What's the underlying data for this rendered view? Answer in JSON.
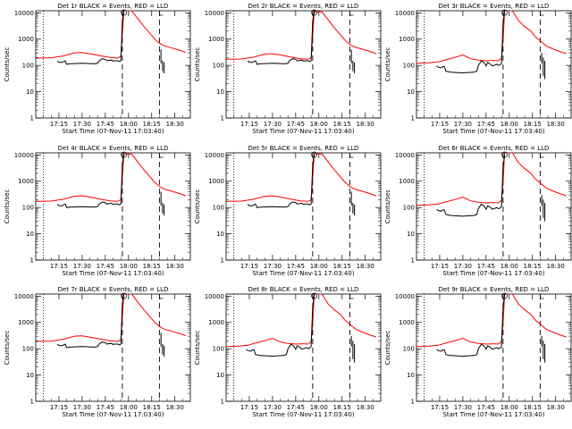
{
  "chart_data": {
    "type": "line",
    "panels": [
      {
        "title": "Det 1r BLACK = Events, RED = LLD",
        "xlabel": "Start Time (07-Nov-11 17:03:40)",
        "ylabel": "Counts/sec",
        "profile": 0,
        "event_scale": 1.0,
        "lld_scale": 1.0
      },
      {
        "title": "Det 2r BLACK = Events, RED = LLD",
        "xlabel": "Start Time (07-Nov-11 17:03:40)",
        "ylabel": "Counts/sec",
        "profile": 0,
        "event_scale": 1.0,
        "lld_scale": 0.9
      },
      {
        "title": "Det 3r BLACK = Events, RED = LLD",
        "xlabel": "Start Time (07-Nov-11 17:03:40)",
        "ylabel": "Counts/sec",
        "profile": 1,
        "event_scale": 1.0,
        "lld_scale": 1.0
      },
      {
        "title": "Det 4r BLACK = Events, RED = LLD",
        "xlabel": "Start Time (07-Nov-11 17:03:40)",
        "ylabel": "Counts/sec",
        "profile": 0,
        "event_scale": 0.9,
        "lld_scale": 0.9
      },
      {
        "title": "Det 5r BLACK = Events, RED = LLD",
        "xlabel": "Start Time (07-Nov-11 17:03:40)",
        "ylabel": "Counts/sec",
        "profile": 0,
        "event_scale": 0.9,
        "lld_scale": 0.9
      },
      {
        "title": "Det 6r BLACK = Events, RED = LLD",
        "xlabel": "Start Time (07-Nov-11 17:03:40)",
        "ylabel": "Counts/sec",
        "profile": 1,
        "event_scale": 0.9,
        "lld_scale": 1.0
      },
      {
        "title": "Det 7r BLACK = Events, RED = LLD",
        "xlabel": "Start Time (07-Nov-11 17:03:40)",
        "ylabel": "Counts/sec",
        "profile": 0,
        "event_scale": 1.0,
        "lld_scale": 1.0
      },
      {
        "title": "Det 8r BLACK = Events, RED = LLD",
        "xlabel": "Start Time (07-Nov-11 17:03:40)",
        "ylabel": "Counts/sec",
        "profile": 1,
        "event_scale": 1.0,
        "lld_scale": 1.0
      },
      {
        "title": "Det 9r BLACK = Events, RED = LLD",
        "xlabel": "Start Time (07-Nov-11 17:03:40)",
        "ylabel": "Counts/sec",
        "profile": 1,
        "event_scale": 1.0,
        "lld_scale": 1.0
      }
    ],
    "x_ticks": [
      "17:15",
      "17:30",
      "17:45",
      "18:00",
      "18:15",
      "18:30"
    ],
    "x_tick_minutes": [
      15,
      30,
      45,
      60,
      75,
      90
    ],
    "x_range_minutes": [
      0,
      100
    ],
    "y_ticks": [
      "1",
      "10",
      "100",
      "1000",
      "10000"
    ],
    "y_tick_values": [
      1,
      10,
      100,
      1000,
      10000
    ],
    "ylim": [
      1,
      12000
    ],
    "y_scale": "log",
    "vlines": [
      {
        "minute": 5,
        "style": "dotted"
      },
      {
        "minute": 56,
        "style": "dashed"
      },
      {
        "minute": 80,
        "style": "dashed"
      }
    ],
    "series_colors": {
      "events": "#000000",
      "lld": "#ff0000"
    },
    "profiles": [
      {
        "lld": [
          [
            0,
            190
          ],
          [
            10,
            195
          ],
          [
            18,
            230
          ],
          [
            25,
            300
          ],
          [
            30,
            310
          ],
          [
            36,
            270
          ],
          [
            42,
            230
          ],
          [
            48,
            200
          ],
          [
            53,
            190
          ],
          [
            55,
            220
          ],
          [
            56,
            1500
          ],
          [
            57,
            12000
          ],
          [
            62,
            12000
          ],
          [
            66,
            6000
          ],
          [
            70,
            3000
          ],
          [
            74,
            1600
          ],
          [
            77,
            1000
          ],
          [
            80,
            700
          ],
          [
            83,
            560
          ],
          [
            88,
            460
          ],
          [
            93,
            380
          ],
          [
            97,
            310
          ]
        ],
        "events": [
          [
            14,
            150
          ],
          [
            15,
            130
          ],
          [
            17,
            130
          ],
          [
            18,
            140
          ],
          [
            19,
            150
          ],
          [
            20,
            110
          ],
          [
            22,
            115
          ],
          [
            30,
            120
          ],
          [
            38,
            115
          ],
          [
            40,
            120
          ],
          [
            41,
            150
          ],
          [
            43,
            180
          ],
          [
            45,
            170
          ],
          [
            46,
            150
          ],
          [
            47,
            155
          ],
          [
            49,
            160
          ],
          [
            50,
            145
          ],
          [
            51,
            150
          ],
          [
            53,
            150
          ],
          [
            54,
            140
          ],
          [
            55,
            150
          ],
          [
            56,
            5000
          ],
          [
            57,
            12000
          ]
        ],
        "events_tail": [
          [
            81,
            400
          ],
          [
            81,
            120
          ],
          [
            82,
            150
          ],
          [
            82,
            60
          ],
          [
            83,
            130
          ],
          [
            83,
            50
          ]
        ]
      },
      {
        "lld": [
          [
            0,
            120
          ],
          [
            8,
            125
          ],
          [
            14,
            135
          ],
          [
            20,
            170
          ],
          [
            26,
            210
          ],
          [
            30,
            250
          ],
          [
            35,
            180
          ],
          [
            40,
            160
          ],
          [
            45,
            150
          ],
          [
            50,
            155
          ],
          [
            53,
            150
          ],
          [
            55,
            190
          ],
          [
            56,
            900
          ],
          [
            57,
            12000
          ],
          [
            62,
            12000
          ],
          [
            66,
            5000
          ],
          [
            70,
            3000
          ],
          [
            74,
            2000
          ],
          [
            77,
            1200
          ],
          [
            80,
            850
          ],
          [
            84,
            550
          ],
          [
            88,
            430
          ],
          [
            93,
            330
          ],
          [
            97,
            280
          ]
        ],
        "events": [
          [
            13,
            95
          ],
          [
            14,
            85
          ],
          [
            16,
            80
          ],
          [
            17,
            90
          ],
          [
            18,
            90
          ],
          [
            19,
            60
          ],
          [
            22,
            55
          ],
          [
            30,
            52
          ],
          [
            37,
            55
          ],
          [
            39,
            60
          ],
          [
            40,
            100
          ],
          [
            42,
            150
          ],
          [
            44,
            120
          ],
          [
            45,
            95
          ],
          [
            46,
            130
          ],
          [
            48,
            110
          ],
          [
            49,
            95
          ],
          [
            50,
            100
          ],
          [
            52,
            110
          ],
          [
            53,
            100
          ],
          [
            54,
            105
          ],
          [
            55,
            120
          ],
          [
            56,
            4000
          ],
          [
            57,
            12000
          ]
        ],
        "events_tail": [
          [
            81,
            300
          ],
          [
            81,
            120
          ],
          [
            82,
            200
          ],
          [
            82,
            40
          ],
          [
            83,
            150
          ],
          [
            83,
            30
          ]
        ]
      }
    ]
  }
}
